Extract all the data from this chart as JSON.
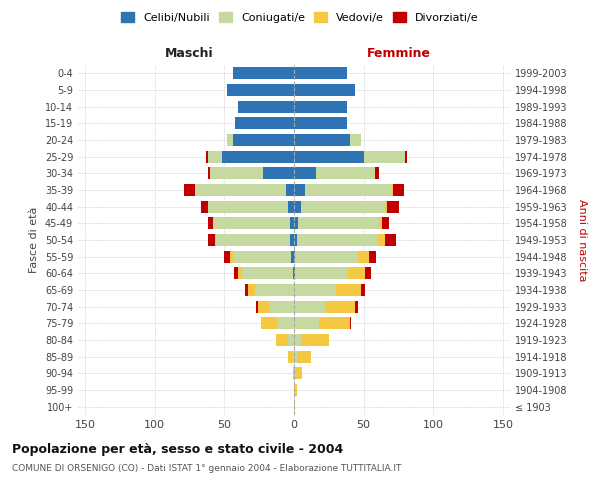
{
  "age_groups": [
    "100+",
    "95-99",
    "90-94",
    "85-89",
    "80-84",
    "75-79",
    "70-74",
    "65-69",
    "60-64",
    "55-59",
    "50-54",
    "45-49",
    "40-44",
    "35-39",
    "30-34",
    "25-29",
    "20-24",
    "15-19",
    "10-14",
    "5-9",
    "0-4"
  ],
  "birth_years": [
    "≤ 1903",
    "1904-1908",
    "1909-1913",
    "1914-1918",
    "1919-1923",
    "1924-1928",
    "1929-1933",
    "1934-1938",
    "1939-1943",
    "1944-1948",
    "1949-1953",
    "1954-1958",
    "1959-1963",
    "1964-1968",
    "1969-1973",
    "1974-1978",
    "1979-1983",
    "1984-1988",
    "1989-1993",
    "1994-1998",
    "1999-2003"
  ],
  "colors": {
    "celibi": "#2e74b5",
    "coniugati": "#c5d9a0",
    "vedovi": "#f5c842",
    "divorziati": "#c00000"
  },
  "male": {
    "celibi": [
      0,
      0,
      0,
      0,
      0,
      0,
      0,
      0,
      1,
      2,
      3,
      3,
      4,
      6,
      22,
      52,
      44,
      42,
      40,
      48,
      44
    ],
    "coniugati": [
      0,
      0,
      0,
      1,
      4,
      12,
      18,
      28,
      36,
      42,
      53,
      55,
      58,
      65,
      38,
      10,
      4,
      0,
      0,
      0,
      0
    ],
    "vedovi": [
      0,
      0,
      1,
      3,
      9,
      12,
      8,
      5,
      3,
      2,
      1,
      0,
      0,
      0,
      0,
      0,
      0,
      0,
      0,
      0,
      0
    ],
    "divorziati": [
      0,
      0,
      0,
      0,
      0,
      0,
      1,
      2,
      3,
      4,
      5,
      4,
      5,
      8,
      2,
      1,
      0,
      0,
      0,
      0,
      0
    ]
  },
  "female": {
    "celibi": [
      0,
      0,
      0,
      0,
      0,
      0,
      0,
      0,
      1,
      1,
      2,
      3,
      5,
      8,
      16,
      50,
      40,
      38,
      38,
      44,
      38
    ],
    "coniugati": [
      0,
      0,
      1,
      2,
      5,
      18,
      22,
      30,
      38,
      45,
      58,
      58,
      60,
      62,
      42,
      30,
      8,
      0,
      0,
      0,
      0
    ],
    "vedovi": [
      1,
      2,
      5,
      10,
      20,
      22,
      22,
      18,
      12,
      8,
      5,
      2,
      2,
      1,
      0,
      0,
      0,
      0,
      0,
      0,
      0
    ],
    "divorziati": [
      0,
      0,
      0,
      0,
      0,
      1,
      2,
      3,
      4,
      5,
      8,
      5,
      8,
      8,
      3,
      1,
      0,
      0,
      0,
      0,
      0
    ]
  },
  "title_main": "Popolazione per età, sesso e stato civile - 2004",
  "title_sub": "COMUNE DI ORSENIGO (CO) - Dati ISTAT 1° gennaio 2004 - Elaborazione TUTTITALIA.IT",
  "xlabel_left": "Maschi",
  "xlabel_right": "Femmine",
  "ylabel_left": "Fasce di età",
  "ylabel_right": "Anni di nascita",
  "legend_labels": [
    "Celibi/Nubili",
    "Coniugati/e",
    "Vedovi/e",
    "Divorziati/e"
  ],
  "xlim": 155,
  "xticks": [
    -150,
    -100,
    -50,
    0,
    50,
    100,
    150
  ],
  "xticklabels": [
    "150",
    "100",
    "50",
    "0",
    "50",
    "100",
    "150"
  ],
  "background_color": "#ffffff",
  "grid_color": "#cccccc"
}
